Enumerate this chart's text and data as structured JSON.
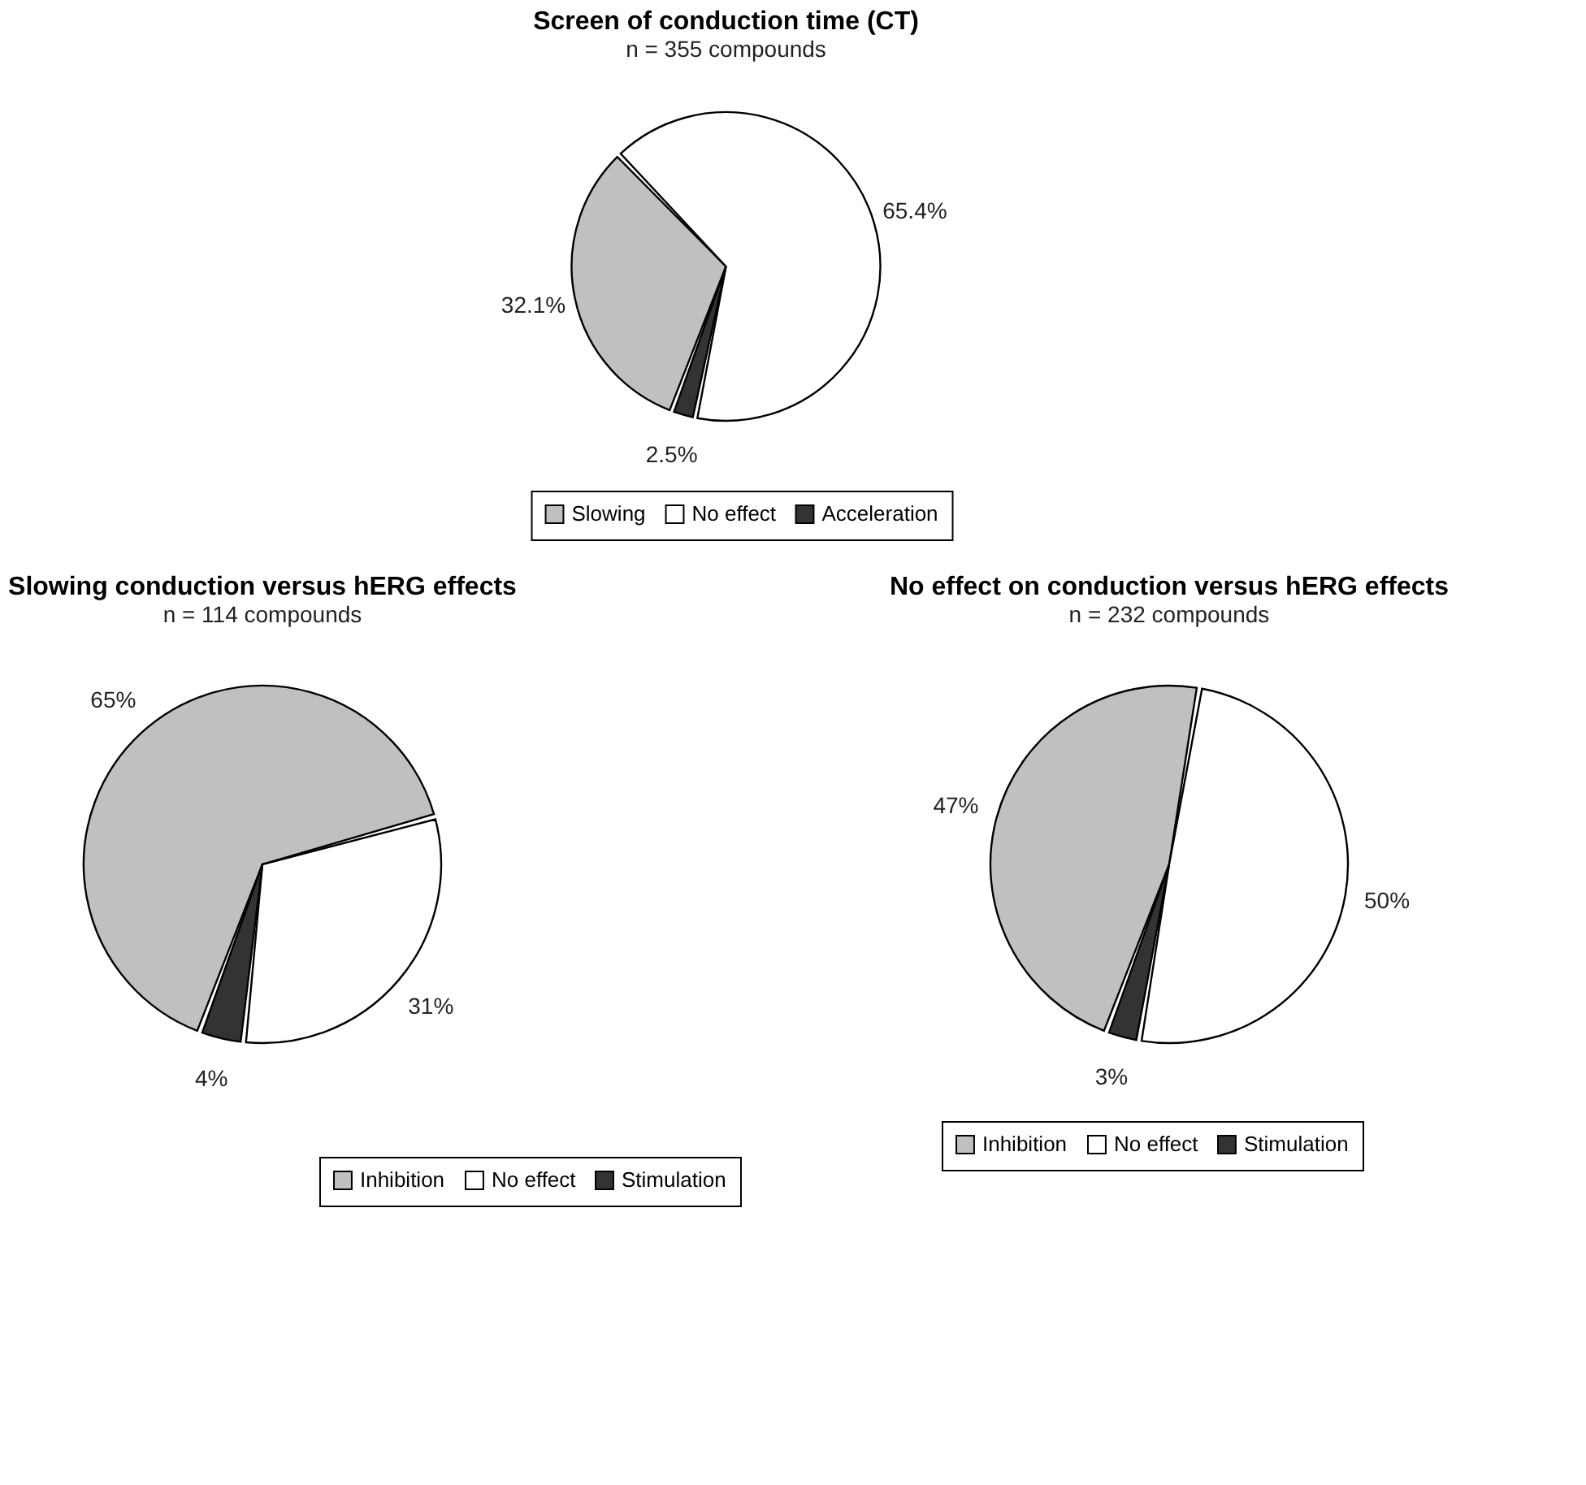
{
  "chart_data": [
    {
      "type": "pie",
      "title": "Screen of conduction time (CT)",
      "subtitle": "n = 355 compounds",
      "categories": [
        "Slowing",
        "No effect",
        "Acceleration"
      ],
      "values": [
        32.1,
        65.4,
        2.5
      ],
      "value_labels": [
        "32.1%",
        "65.4%",
        "2.5%"
      ],
      "colors": [
        "#c0c0c0",
        "#ffffff",
        "#333333"
      ],
      "legend": "bottom"
    },
    {
      "type": "pie",
      "title": "Slowing conduction versus hERG effects",
      "subtitle": "n = 114 compounds",
      "categories": [
        "Inhibition",
        "No effect",
        "Stimulation"
      ],
      "values": [
        65,
        31,
        4
      ],
      "value_labels": [
        "65%",
        "31%",
        "4%"
      ],
      "colors": [
        "#c0c0c0",
        "#ffffff",
        "#333333"
      ],
      "legend": "bottom"
    },
    {
      "type": "pie",
      "title": "No effect on conduction versus hERG effects",
      "subtitle": "n = 232 compounds",
      "categories": [
        "Inhibition",
        "No effect",
        "Stimulation"
      ],
      "values": [
        47,
        50,
        3
      ],
      "value_labels": [
        "47%",
        "50%",
        "3%"
      ],
      "colors": [
        "#c0c0c0",
        "#ffffff",
        "#333333"
      ],
      "legend": "bottom"
    }
  ]
}
